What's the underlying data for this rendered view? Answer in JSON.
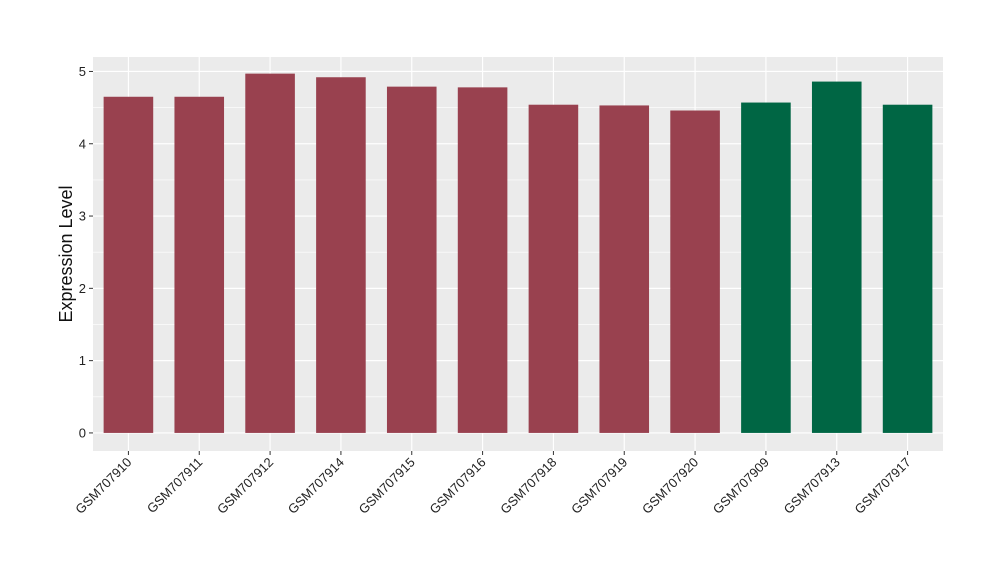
{
  "chart_data": {
    "type": "bar",
    "title": "",
    "xlabel": "",
    "ylabel": "Expression Level",
    "ylim": [
      -0.25,
      5.2
    ],
    "yticks": [
      0,
      1,
      2,
      3,
      4,
      5
    ],
    "grid": true,
    "categories": [
      "GSM707910",
      "GSM707911",
      "GSM707912",
      "GSM707914",
      "GSM707915",
      "GSM707916",
      "GSM707918",
      "GSM707919",
      "GSM707920",
      "GSM707909",
      "GSM707913",
      "GSM707917"
    ],
    "values": [
      4.65,
      4.65,
      4.97,
      4.92,
      4.79,
      4.78,
      4.54,
      4.53,
      4.46,
      4.57,
      4.86,
      4.54
    ],
    "bar_colors": [
      "#99414f",
      "#99414f",
      "#99414f",
      "#99414f",
      "#99414f",
      "#99414f",
      "#99414f",
      "#99414f",
      "#99414f",
      "#006644",
      "#006644",
      "#006644"
    ],
    "panel_background": "#ebebeb",
    "grid_color": "#ffffff"
  }
}
